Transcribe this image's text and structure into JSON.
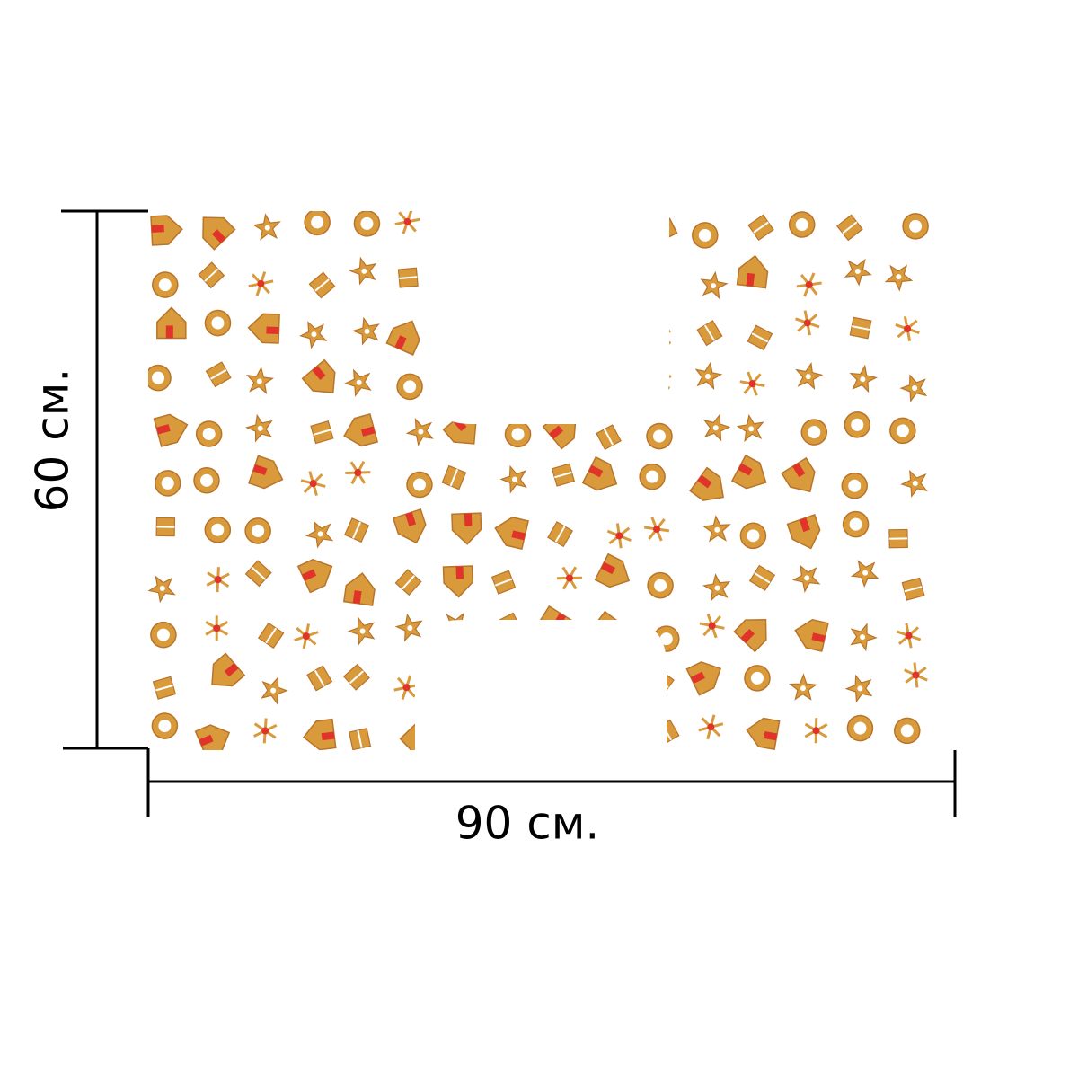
{
  "dimensions": {
    "height": {
      "label": "60 см."
    },
    "width": {
      "label": "90 см."
    }
  }
}
